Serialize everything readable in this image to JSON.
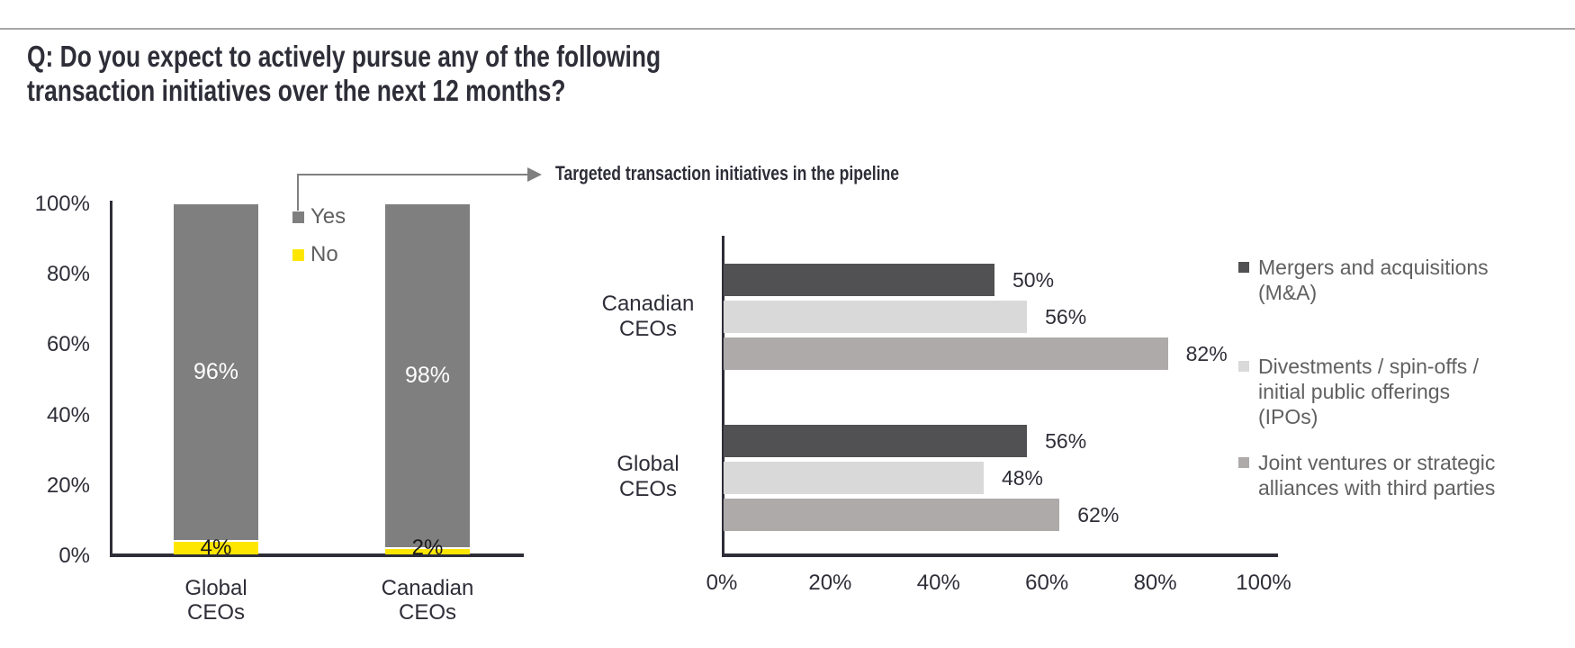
{
  "question": {
    "lines": [
      "Q: Do you expect to actively pursue any of the following",
      "transaction initiatives over the next 12 months?"
    ]
  },
  "colors": {
    "ink": "#2e2e38",
    "top_rule": "#a6a6a6",
    "arrow": "#7f7f7f",
    "legend_text": "#606060",
    "yes_gray": "#7f7f7f",
    "no_yellow": "#ffe600",
    "mna_dark_gray": "#515153",
    "divestments_light_gray": "#d9d9d9",
    "joint_ventures_medium_gray": "#aeaaaa"
  },
  "chart_data": [
    {
      "type": "bar",
      "subtype": "stacked-vertical-100percent",
      "categories": [
        "Global CEOs",
        "Canadian CEOs"
      ],
      "series": [
        {
          "name": "Yes",
          "color": "#7f7f7f",
          "values": [
            96,
            98
          ]
        },
        {
          "name": "No",
          "color": "#ffe600",
          "values": [
            4,
            2
          ]
        }
      ],
      "ylim": [
        0,
        100
      ],
      "y_ticks": [
        "0%",
        "20%",
        "40%",
        "60%",
        "80%",
        "100%"
      ],
      "grid": "off",
      "legend_position": "upper-center-between-bars",
      "value_label_format": "percent"
    },
    {
      "type": "bar",
      "subtype": "horizontal-grouped",
      "title": "Targeted transaction initiatives in the pipeline",
      "categories": [
        "Canadian CEOs",
        "Global CEOs"
      ],
      "series": [
        {
          "name": "Mergers and acquisitions (M&A)",
          "legend_lines": [
            "Mergers and acquisitions",
            "(M&A)"
          ],
          "color": "#515153",
          "values": [
            50,
            56
          ]
        },
        {
          "name": "Divestments / spin-offs / initial public offerings (IPOs)",
          "legend_lines": [
            "Divestments / spin-offs /",
            "initial public offerings",
            "(IPOs)"
          ],
          "color": "#d9d9d9",
          "values": [
            56,
            48
          ]
        },
        {
          "name": "Joint ventures or strategic alliances with third parties",
          "legend_lines": [
            "Joint ventures or strategic",
            "alliances with third parties"
          ],
          "color": "#aeaaaa",
          "values": [
            82,
            62
          ]
        }
      ],
      "xlim": [
        0,
        100
      ],
      "x_ticks": [
        "0%",
        "20%",
        "40%",
        "60%",
        "80%",
        "100%"
      ],
      "grid": "off",
      "legend_position": "right",
      "value_label_format": "percent"
    }
  ]
}
